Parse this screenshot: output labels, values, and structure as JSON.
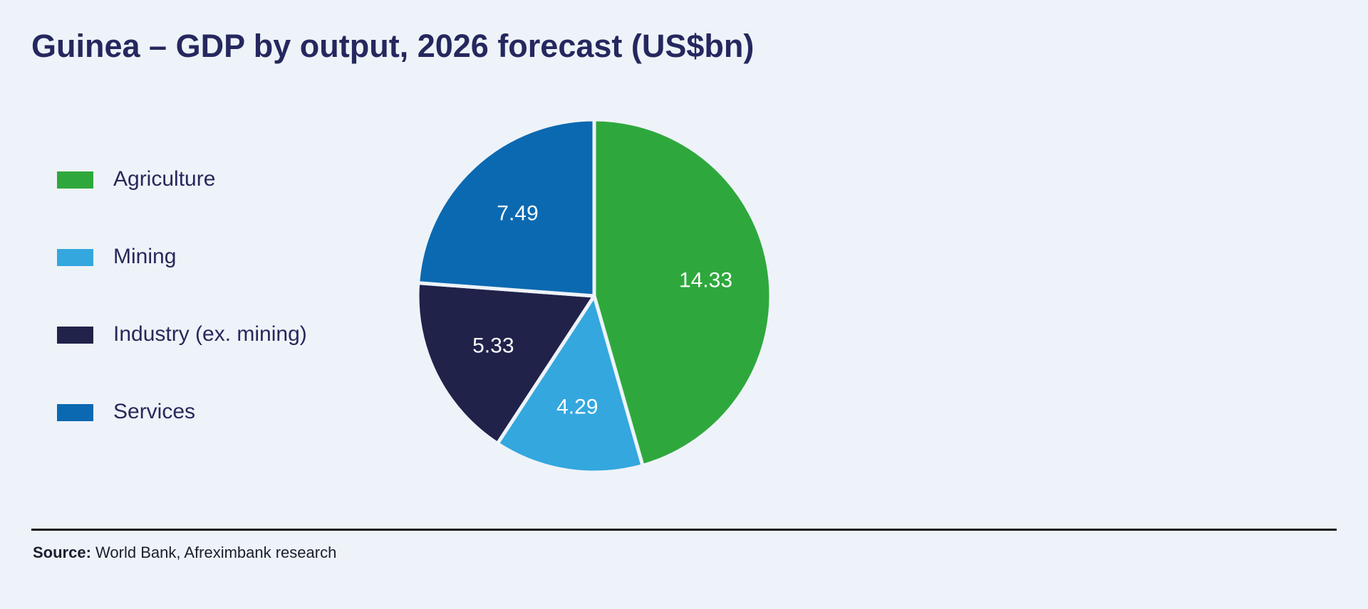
{
  "title": "Guinea – GDP by output, 2026 forecast (US$bn)",
  "source": {
    "label": "Source:",
    "text": " World Bank, Afreximbank research"
  },
  "chart_data": {
    "type": "pie",
    "title": "Guinea – GDP by output, 2026 forecast (US$bn)",
    "start_angle_deg": 0,
    "direction": "clockwise",
    "legend_position": "left",
    "slices": [
      {
        "label": "Agriculture",
        "value": 14.33,
        "display": "14.33",
        "color": "#2ea83c"
      },
      {
        "label": "Mining",
        "value": 4.29,
        "display": "4.29",
        "color": "#33a7de"
      },
      {
        "label": "Industry (ex. mining)",
        "value": 5.33,
        "display": "5.33",
        "color": "#20224a"
      },
      {
        "label": "Services",
        "value": 7.49,
        "display": "7.49",
        "color": "#0b69b1"
      }
    ]
  }
}
